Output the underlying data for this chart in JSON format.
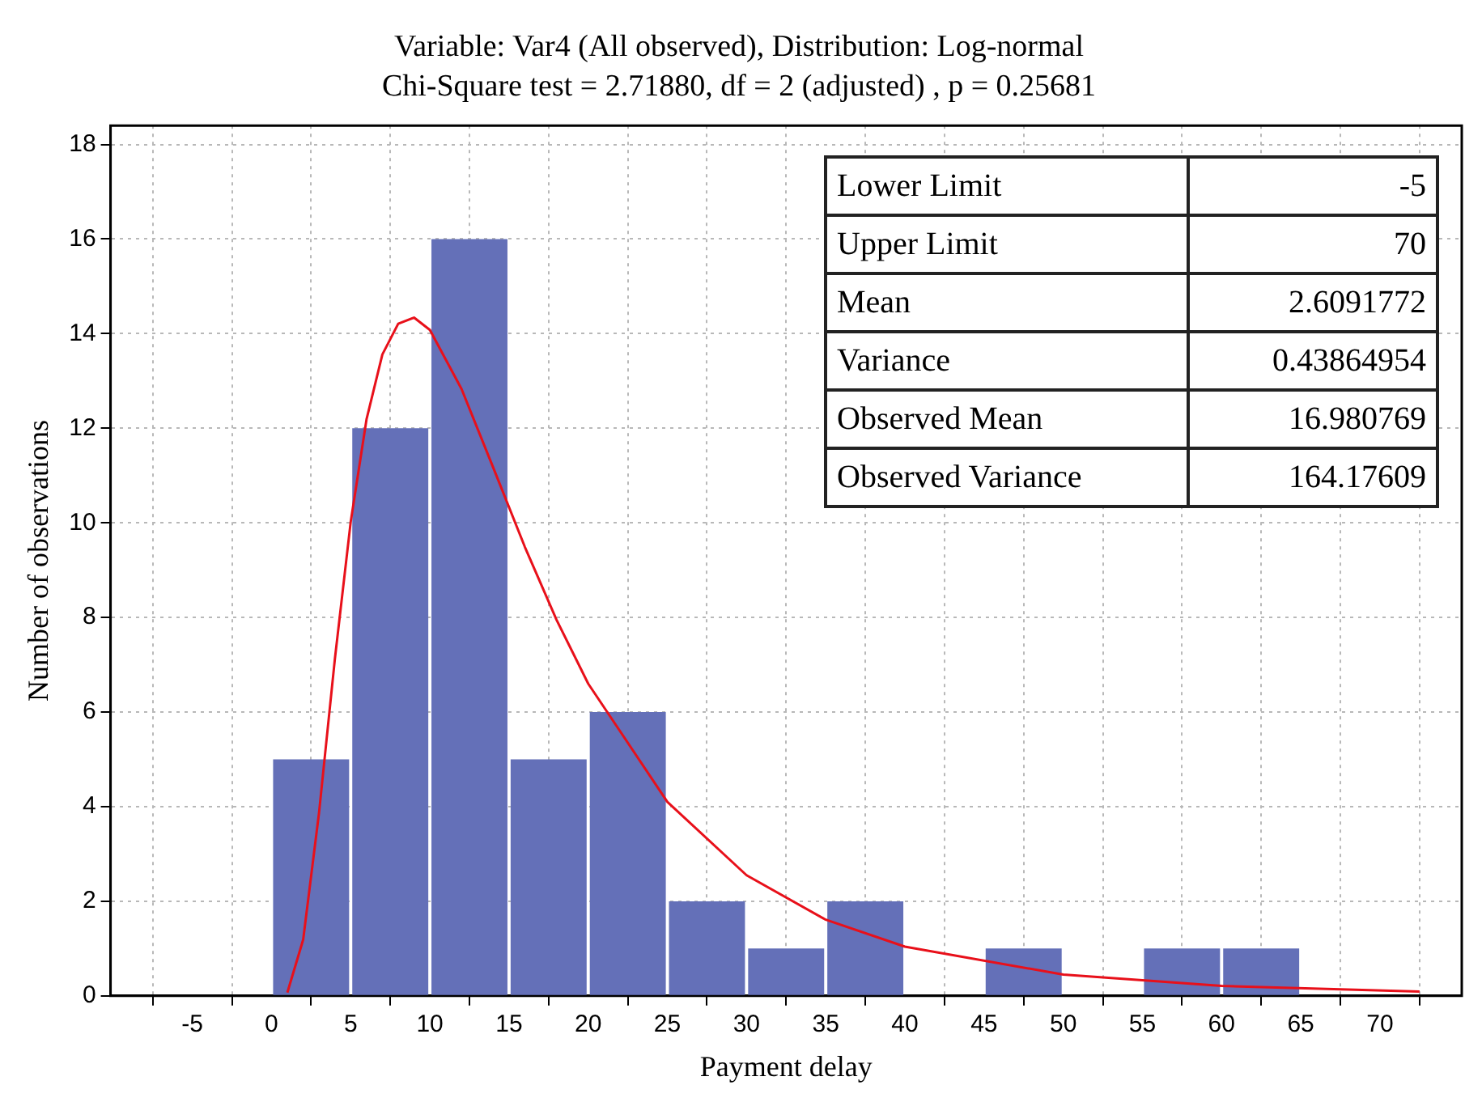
{
  "chart_data": {
    "type": "histogram",
    "title": "Variable: Var4 (All observed), Distribution: Log-normal",
    "subtitle": "Chi-Square test = 2.71880, df = 2 (adjusted) , p = 0.25681",
    "xlabel": "Payment delay",
    "ylabel": "Number of observations",
    "bins": [
      0,
      5,
      10,
      15,
      20,
      25,
      30,
      35,
      40,
      45,
      50,
      55,
      60,
      65
    ],
    "values": [
      5,
      12,
      16,
      5,
      6,
      2,
      1,
      2,
      0,
      1,
      0,
      1,
      1
    ],
    "color": "#6470b8",
    "series": [
      {
        "type": "line",
        "color": "#e8101a",
        "marker": "none",
        "x": [
          1,
          2,
          3,
          4,
          5,
          6,
          7,
          8,
          9,
          10,
          12,
          14,
          16,
          18,
          20,
          25,
          30,
          35,
          40,
          50,
          60,
          72.5
        ],
        "values": [
          0.07,
          1.19,
          3.87,
          7.12,
          10.02,
          12.19,
          13.56,
          14.21,
          14.34,
          14.08,
          12.83,
          11.17,
          9.49,
          7.95,
          6.6,
          4.1,
          2.55,
          1.61,
          1.04,
          0.45,
          0.21,
          0.09
        ]
      }
    ],
    "xlim": [
      -7.5,
      72.5
    ],
    "xticks": [
      -5,
      0,
      5,
      10,
      15,
      20,
      25,
      30,
      35,
      40,
      45,
      50,
      55,
      60,
      65,
      70
    ],
    "ylim": [
      0,
      18.4
    ],
    "yticks": [
      0,
      2,
      4,
      6,
      8,
      10,
      12,
      14,
      16,
      18
    ],
    "grid": true,
    "legend": false,
    "annotations": [
      "Lower Limit",
      "-5",
      "Upper Limit",
      "70",
      "Mean",
      "2.6091772",
      "Variance",
      "0.43864954",
      "Observed Mean",
      "16.980769",
      "Observed Variance",
      "164.17609"
    ]
  }
}
